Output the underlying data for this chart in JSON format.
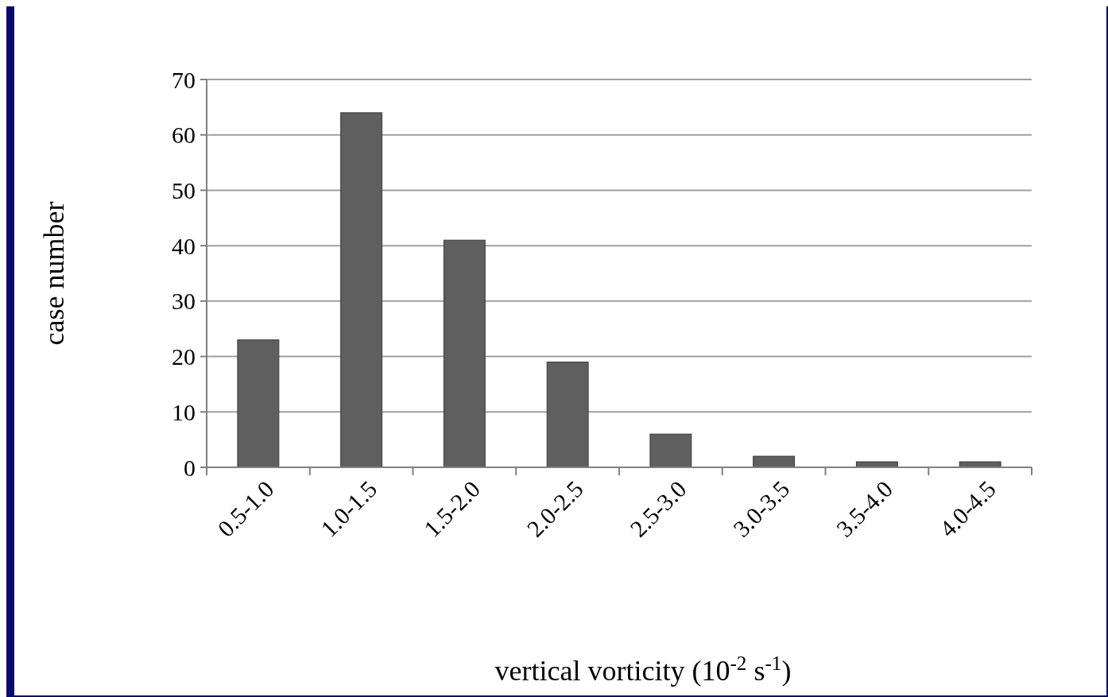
{
  "chart_data": {
    "type": "bar",
    "xlabel": "vertical vorticity (10$^{-2}$ s$^{-1}$)",
    "ylabel": "case number",
    "categories": [
      "0.5-1.0",
      "1.0-1.5",
      "1.5-2.0",
      "2.0-2.5",
      "2.5-3.0",
      "3.0-3.5",
      "3.5-4.0",
      "4.0-4.5"
    ],
    "values": [
      23,
      64,
      41,
      19,
      6,
      2,
      1,
      1
    ],
    "color": "#5f5f5f",
    "ylim": [
      0,
      70
    ],
    "yticks": [
      0,
      10,
      20,
      30,
      40,
      50,
      60,
      70
    ],
    "grid": "y"
  }
}
